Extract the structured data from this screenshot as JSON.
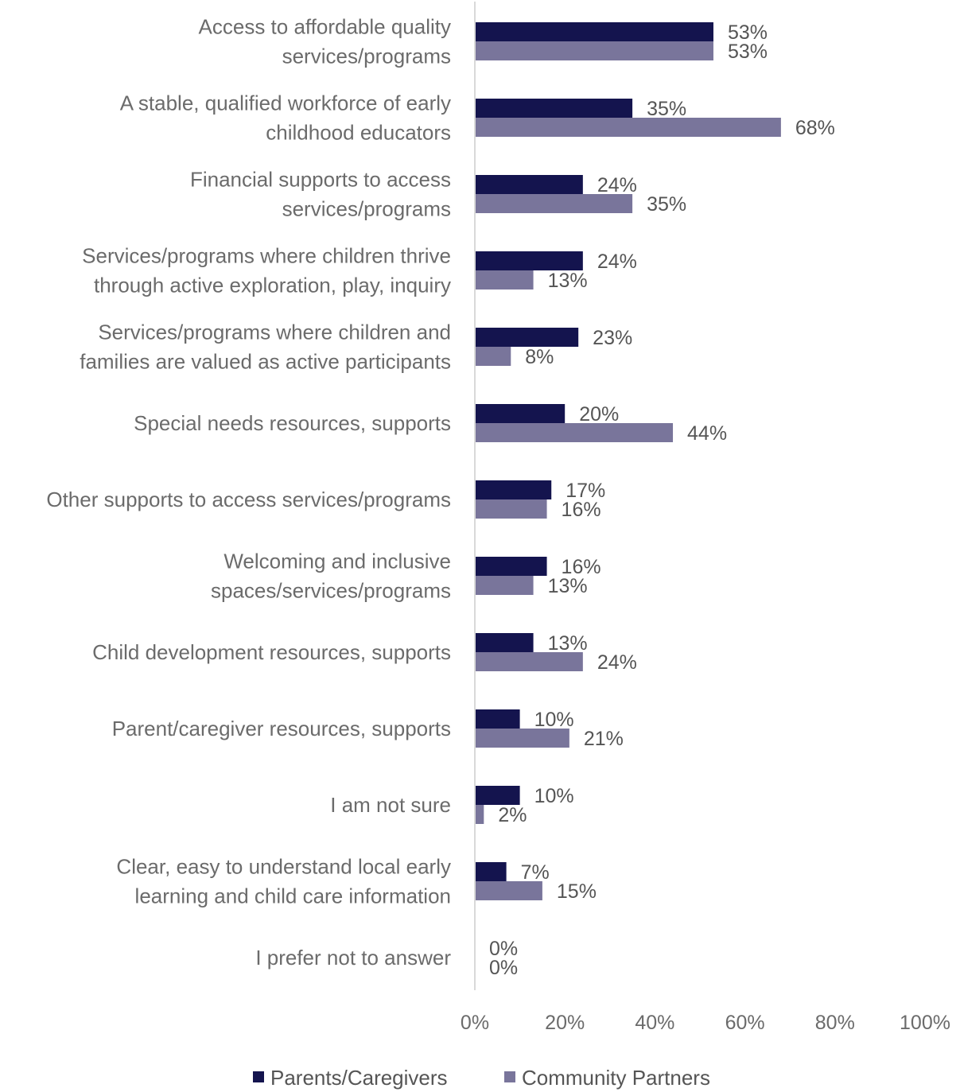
{
  "chart_data": {
    "type": "bar",
    "orientation": "horizontal",
    "categories": [
      [
        "Access to affordable quality",
        "services/programs"
      ],
      [
        "A stable, qualified workforce of early",
        "childhood educators"
      ],
      [
        "Financial supports to access",
        "services/programs"
      ],
      [
        "Services/programs where children thrive",
        "through active exploration, play, inquiry"
      ],
      [
        "Services/programs where children and",
        "families are valued as active participants"
      ],
      [
        "Special needs resources, supports"
      ],
      [
        "Other supports to access services/programs"
      ],
      [
        "Welcoming and inclusive",
        "spaces/services/programs"
      ],
      [
        "Child development resources, supports"
      ],
      [
        "Parent/caregiver resources, supports"
      ],
      [
        "I am not sure"
      ],
      [
        "Clear, easy to understand local early",
        "learning and child care information"
      ],
      [
        "I prefer not to answer"
      ]
    ],
    "series": [
      {
        "name": "Parents/Caregivers",
        "color": "#14144e",
        "values": [
          53,
          35,
          24,
          24,
          23,
          20,
          17,
          16,
          13,
          10,
          10,
          7,
          0
        ],
        "labels": [
          "53%",
          "35%",
          "24%",
          "24%",
          "23%",
          "20%",
          "17%",
          "16%",
          "13%",
          "10%",
          "10%",
          "7%",
          "0%"
        ]
      },
      {
        "name": "Community Partners",
        "color": "#79759b",
        "values": [
          53,
          68,
          35,
          13,
          8,
          44,
          16,
          13,
          24,
          21,
          2,
          15,
          0
        ],
        "labels": [
          "53%",
          "68%",
          "35%",
          "13%",
          "8%",
          "44%",
          "16%",
          "13%",
          "24%",
          "21%",
          "2%",
          "15%",
          "0%"
        ]
      }
    ],
    "xlim": [
      0,
      100
    ],
    "x_ticks": [
      "0%",
      "20%",
      "40%",
      "60%",
      "80%",
      "100%"
    ],
    "x_tick_values": [
      0,
      20,
      40,
      60,
      80,
      100
    ],
    "grid": false,
    "legend_position": "bottom",
    "axis_color": "#d9d9d9"
  }
}
